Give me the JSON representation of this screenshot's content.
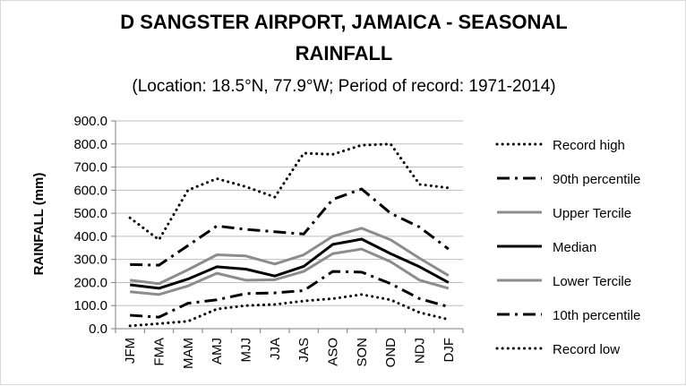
{
  "chart_data": {
    "type": "line",
    "title_line1": "D SANGSTER AIRPORT, JAMAICA - SEASONAL",
    "title_line2": "RAINFALL",
    "subtitle": "(Location: 18.5°N, 77.9°W; Period of record: 1971-2014)",
    "ylabel": "RAINFALL (mm)",
    "xlabel": "",
    "ylim": [
      0,
      900
    ],
    "yticks": [
      "0.0",
      "100.0",
      "200.0",
      "300.0",
      "400.0",
      "500.0",
      "600.0",
      "700.0",
      "800.0",
      "900.0"
    ],
    "ytick_values": [
      0,
      100,
      200,
      300,
      400,
      500,
      600,
      700,
      800,
      900
    ],
    "categories": [
      "JFM",
      "FMA",
      "MAM",
      "AMJ",
      "MJJ",
      "JJA",
      "JAS",
      "ASO",
      "SON",
      "OND",
      "NDJ",
      "DJF"
    ],
    "grid": "horizontal",
    "legend_position": "right",
    "series": [
      {
        "name": "Record high",
        "style": "dotted",
        "color": "#000000",
        "values": [
          480,
          385,
          600,
          650,
          615,
          570,
          760,
          755,
          795,
          800,
          625,
          610
        ]
      },
      {
        "name": "90th percentile",
        "style": "dashdot",
        "color": "#000000",
        "values": [
          278,
          275,
          360,
          445,
          430,
          420,
          410,
          560,
          605,
          500,
          440,
          345
        ]
      },
      {
        "name": "Upper Tercile",
        "style": "solid",
        "color": "#8c8c8c",
        "values": [
          210,
          195,
          255,
          320,
          315,
          280,
          320,
          400,
          435,
          385,
          305,
          230
        ]
      },
      {
        "name": "Median",
        "style": "solid",
        "color": "#000000",
        "values": [
          190,
          175,
          215,
          268,
          258,
          228,
          270,
          365,
          388,
          325,
          268,
          200
        ]
      },
      {
        "name": "Lower Tercile",
        "style": "solid",
        "color": "#8c8c8c",
        "values": [
          160,
          148,
          185,
          240,
          210,
          212,
          248,
          325,
          345,
          290,
          210,
          175
        ]
      },
      {
        "name": "10th percentile",
        "style": "dashdot",
        "color": "#000000",
        "values": [
          58,
          50,
          110,
          125,
          152,
          155,
          165,
          248,
          245,
          195,
          130,
          95
        ]
      },
      {
        "name": "Record low",
        "style": "dotted",
        "color": "#000000",
        "values": [
          12,
          22,
          32,
          85,
          100,
          105,
          120,
          130,
          148,
          125,
          70,
          40
        ]
      }
    ]
  }
}
